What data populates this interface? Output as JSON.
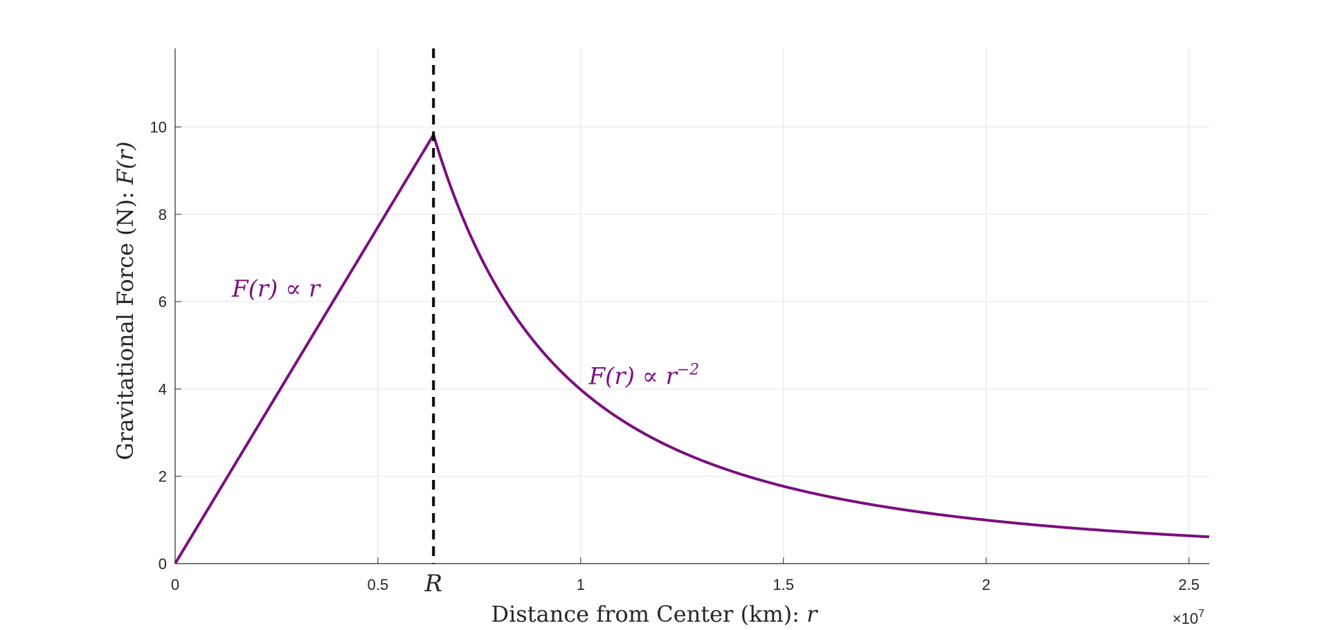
{
  "chart_data": {
    "type": "line",
    "title": "",
    "xlabel": "Distance from Center (km): ",
    "xlabel_var": "r",
    "ylabel": "Gravitational Force (N): ",
    "ylabel_var": "F(r)",
    "x_exponent_label": "×10",
    "x_exponent": "7",
    "xlim": [
      0,
      25500000
    ],
    "ylim": [
      0,
      11.8
    ],
    "x_ticks": [
      {
        "value": 0,
        "label": "0"
      },
      {
        "value": 5000000,
        "label": "0.5"
      },
      {
        "value": 10000000,
        "label": "1"
      },
      {
        "value": 15000000,
        "label": "1.5"
      },
      {
        "value": 20000000,
        "label": "2"
      },
      {
        "value": 25000000,
        "label": "2.5"
      }
    ],
    "y_ticks": [
      {
        "value": 0,
        "label": "0"
      },
      {
        "value": 2,
        "label": "2"
      },
      {
        "value": 4,
        "label": "4"
      },
      {
        "value": 6,
        "label": "6"
      },
      {
        "value": 8,
        "label": "8"
      },
      {
        "value": 10,
        "label": "10"
      }
    ],
    "grid": true,
    "series": [
      {
        "color": "#7b0f7e",
        "R": 6371000,
        "F_at_R": 9.82,
        "inside": "linear",
        "outside": "inverse-square",
        "x_end": 25500000
      }
    ],
    "vline": {
      "x": 6371000,
      "label": "R",
      "style": "dashed",
      "color": "#000000"
    },
    "annotations": [
      {
        "text_main": "F(r) ∝ r",
        "sup": "",
        "x": 1400000,
        "y": 6.3
      },
      {
        "text_main": "F(r) ∝ r",
        "sup": "−2",
        "x": 10200000,
        "y": 4.3
      }
    ]
  }
}
